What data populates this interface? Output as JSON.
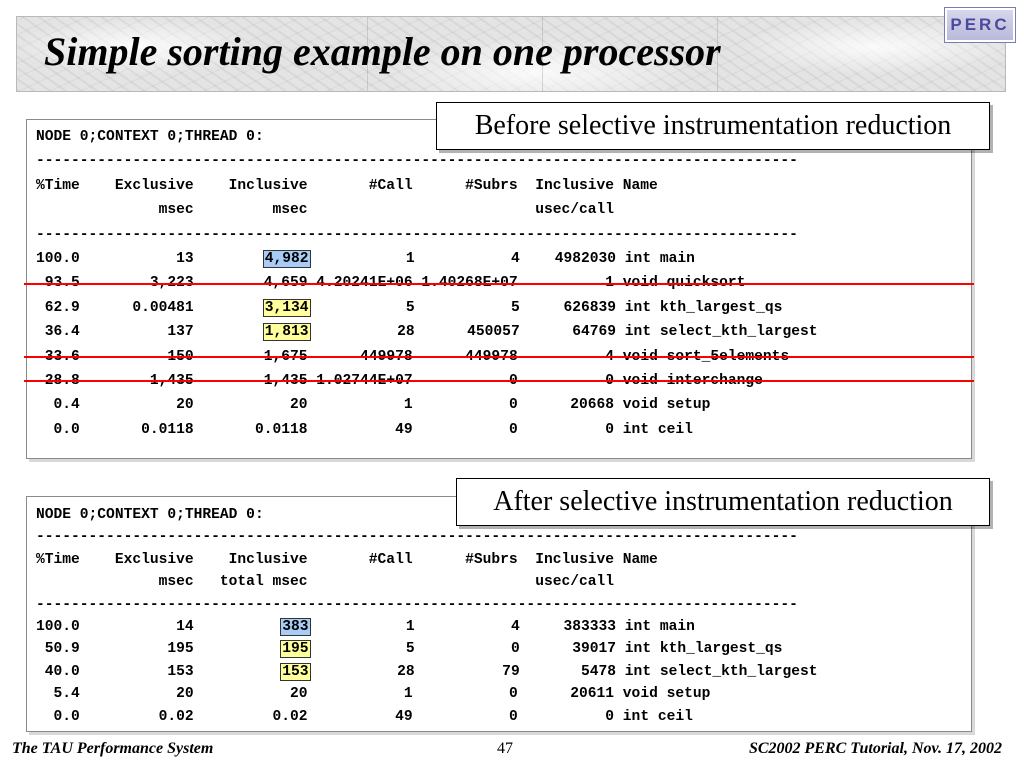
{
  "title": "Simple sorting example on one processor",
  "logo": "PERC",
  "callouts": {
    "before": "Before selective instrumentation reduction",
    "after": "After selective instrumentation reduction"
  },
  "before_table": {
    "node_line": "NODE 0;CONTEXT 0;THREAD 0:",
    "separator": "---------------------------------------------------------------------------------------",
    "header1": "%Time    Exclusive    Inclusive       #Call      #Subrs  Inclusive Name",
    "header2": "              msec         msec                          usec/call",
    "rows": [
      {
        "pct": "100.0",
        "excl": "13",
        "incl": "4,982",
        "call": "1",
        "subrs": "4",
        "incl_usec": "4982030",
        "name": "int main",
        "highlight": "blue",
        "struck": false
      },
      {
        "pct": " 93.5",
        "excl": "3,223",
        "incl": "4,659",
        "call": "4.20241E+06",
        "subrs": "1.40268E+07",
        "incl_usec": "1",
        "name": "void quicksort",
        "highlight": "",
        "struck": true
      },
      {
        "pct": " 62.9",
        "excl": "0.00481",
        "incl": "3,134",
        "call": "5",
        "subrs": "5",
        "incl_usec": "626839",
        "name": "int kth_largest_qs",
        "highlight": "yellow",
        "struck": false
      },
      {
        "pct": " 36.4",
        "excl": "137",
        "incl": "1,813",
        "call": "28",
        "subrs": "450057",
        "incl_usec": "64769",
        "name": "int select_kth_largest",
        "highlight": "yellow",
        "struck": false
      },
      {
        "pct": " 33.6",
        "excl": "150",
        "incl": "1,675",
        "call": "449978",
        "subrs": "449978",
        "incl_usec": "4",
        "name": "void sort_5elements",
        "highlight": "",
        "struck": true
      },
      {
        "pct": " 28.8",
        "excl": "1,435",
        "incl": "1,435",
        "call": "1.02744E+07",
        "subrs": "0",
        "incl_usec": "0",
        "name": "void interchange",
        "highlight": "",
        "struck": true
      },
      {
        "pct": "  0.4",
        "excl": "20",
        "incl": "20",
        "call": "1",
        "subrs": "0",
        "incl_usec": "20668",
        "name": "void setup",
        "highlight": "",
        "struck": false
      },
      {
        "pct": "  0.0",
        "excl": "0.0118",
        "incl": "0.0118",
        "call": "49",
        "subrs": "0",
        "incl_usec": "0",
        "name": "int ceil",
        "highlight": "",
        "struck": false
      }
    ]
  },
  "after_table": {
    "node_line": "NODE 0;CONTEXT 0;THREAD 0:",
    "separator": "---------------------------------------------------------------------------------------",
    "header1": "%Time    Exclusive    Inclusive       #Call      #Subrs  Inclusive Name",
    "header2": "              msec   total msec                          usec/call",
    "rows": [
      {
        "pct": "100.0",
        "excl": "14",
        "incl": "383",
        "call": "1",
        "subrs": "4",
        "incl_usec": "383333",
        "name": "int main",
        "highlight": "blue"
      },
      {
        "pct": " 50.9",
        "excl": "195",
        "incl": "195",
        "call": "5",
        "subrs": "0",
        "incl_usec": "39017",
        "name": "int kth_largest_qs",
        "highlight": "yellow"
      },
      {
        "pct": " 40.0",
        "excl": "153",
        "incl": "153",
        "call": "28",
        "subrs": "79",
        "incl_usec": "5478",
        "name": "int select_kth_largest",
        "highlight": "yellow"
      },
      {
        "pct": "  5.4",
        "excl": "20",
        "incl": "20",
        "call": "1",
        "subrs": "0",
        "incl_usec": "20611",
        "name": "void setup",
        "highlight": ""
      },
      {
        "pct": "  0.0",
        "excl": "0.02",
        "incl": "0.02",
        "call": "49",
        "subrs": "0",
        "incl_usec": "0",
        "name": "int ceil",
        "highlight": ""
      }
    ]
  },
  "footer": {
    "left": "The TAU Performance System",
    "page": "47",
    "right": "SC2002 PERC Tutorial, Nov. 17, 2002"
  },
  "colors": {
    "highlight_blue": "#a8ccf5",
    "highlight_yellow": "#ffff9c",
    "strike_red": "#ff0000"
  }
}
